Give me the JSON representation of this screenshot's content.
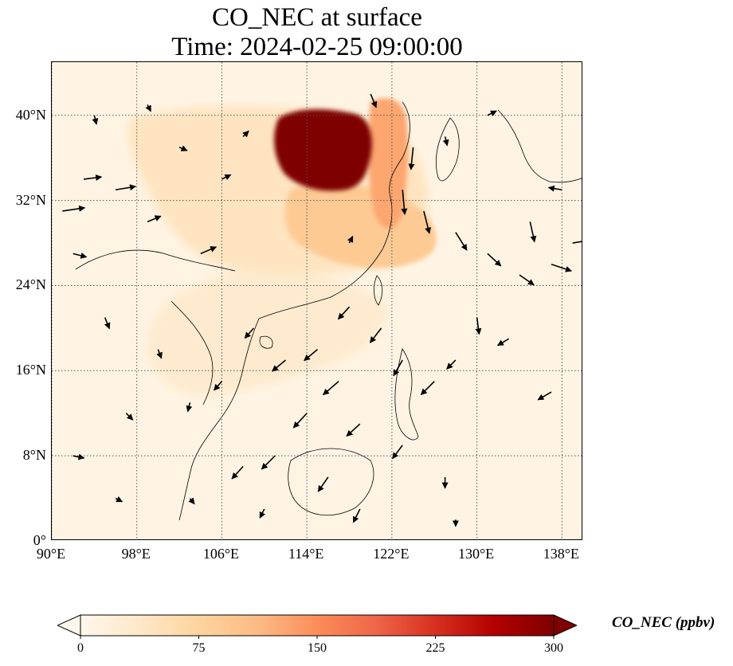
{
  "title": {
    "line1": "CO_NEC at surface",
    "line2": "Time: 2024-02-25 09:00:00"
  },
  "map": {
    "variable": "CO_NEC",
    "level": "surface",
    "lon_range": [
      90,
      140
    ],
    "lat_range": [
      0,
      45
    ],
    "lat_ticks": [
      {
        "value": 0,
        "label": "0°"
      },
      {
        "value": 8,
        "label": "8°N"
      },
      {
        "value": 16,
        "label": "16°N"
      },
      {
        "value": 24,
        "label": "24°N"
      },
      {
        "value": 32,
        "label": "32°N"
      },
      {
        "value": 40,
        "label": "40°N"
      }
    ],
    "lon_ticks": [
      {
        "value": 90,
        "label": "90°E"
      },
      {
        "value": 98,
        "label": "98°E"
      },
      {
        "value": 106,
        "label": "106°E"
      },
      {
        "value": 114,
        "label": "114°E"
      },
      {
        "value": 122,
        "label": "122°E"
      },
      {
        "value": 130,
        "label": "130°E"
      },
      {
        "value": 138,
        "label": "138°E"
      }
    ],
    "gridlines": true,
    "colormap": "OrRd",
    "regions": [
      {
        "name": "background",
        "value": 8
      },
      {
        "name": "south-china-haze",
        "value": 30
      },
      {
        "name": "inland-plume",
        "value": 45
      },
      {
        "name": "yangtze-band",
        "value": 90
      },
      {
        "name": "east-coast-band",
        "value": 130
      },
      {
        "name": "north-china-plain",
        "value": 300
      }
    ],
    "wind_vectors": [
      {
        "lon": 91,
        "lat": 31,
        "u": 2,
        "v": 0.3
      },
      {
        "lon": 93,
        "lat": 34,
        "u": 1.6,
        "v": 0.2
      },
      {
        "lon": 96,
        "lat": 33,
        "u": 1.8,
        "v": 0.3
      },
      {
        "lon": 99,
        "lat": 30,
        "u": 1.2,
        "v": 0.5
      },
      {
        "lon": 104,
        "lat": 27,
        "u": 1.4,
        "v": 0.6
      },
      {
        "lon": 92,
        "lat": 27,
        "u": 1.2,
        "v": -0.3
      },
      {
        "lon": 95,
        "lat": 21,
        "u": 0.4,
        "v": -1
      },
      {
        "lon": 97,
        "lat": 12,
        "u": 0.6,
        "v": -0.6
      },
      {
        "lon": 92,
        "lat": 8,
        "u": 1,
        "v": -0.2
      },
      {
        "lon": 109,
        "lat": 20,
        "u": -0.8,
        "v": -0.9
      },
      {
        "lon": 112,
        "lat": 17,
        "u": -1.2,
        "v": -1
      },
      {
        "lon": 115,
        "lat": 18,
        "u": -1.2,
        "v": -1
      },
      {
        "lon": 117,
        "lat": 15,
        "u": -1.4,
        "v": -1.2
      },
      {
        "lon": 114,
        "lat": 12,
        "u": -1.2,
        "v": -1.3
      },
      {
        "lon": 111,
        "lat": 8,
        "u": -1.2,
        "v": -1.2
      },
      {
        "lon": 108,
        "lat": 7,
        "u": -1,
        "v": -1.1
      },
      {
        "lon": 118,
        "lat": 22,
        "u": -1,
        "v": -1.1
      },
      {
        "lon": 121,
        "lat": 20,
        "u": -1,
        "v": -1.3
      },
      {
        "lon": 123,
        "lat": 17,
        "u": -0.8,
        "v": -1.4
      },
      {
        "lon": 126,
        "lat": 15,
        "u": -1.2,
        "v": -1.2
      },
      {
        "lon": 119,
        "lat": 11,
        "u": -1.2,
        "v": -1.1
      },
      {
        "lon": 123,
        "lat": 9,
        "u": -0.9,
        "v": -1.2
      },
      {
        "lon": 116,
        "lat": 6,
        "u": -0.9,
        "v": -1.3
      },
      {
        "lon": 119,
        "lat": 3,
        "u": -0.6,
        "v": -1.2
      },
      {
        "lon": 124,
        "lat": 37,
        "u": -0.2,
        "v": -2
      },
      {
        "lon": 123,
        "lat": 33,
        "u": 0.2,
        "v": -2.2
      },
      {
        "lon": 125,
        "lat": 31,
        "u": 0.5,
        "v": -2
      },
      {
        "lon": 128,
        "lat": 29,
        "u": 1,
        "v": -1.6
      },
      {
        "lon": 131,
        "lat": 27,
        "u": 1.2,
        "v": -1.1
      },
      {
        "lon": 134,
        "lat": 25,
        "u": 1.3,
        "v": -0.9
      },
      {
        "lon": 135,
        "lat": 30,
        "u": 0.4,
        "v": -1.8
      },
      {
        "lon": 138,
        "lat": 33,
        "u": -1.2,
        "v": 0.2
      },
      {
        "lon": 137,
        "lat": 26,
        "u": 1.8,
        "v": -0.6
      },
      {
        "lon": 139,
        "lat": 28,
        "u": 1.8,
        "v": 0.3
      },
      {
        "lon": 130,
        "lat": 21,
        "u": 0.2,
        "v": -1.5
      },
      {
        "lon": 128,
        "lat": 17,
        "u": -0.8,
        "v": -0.8
      },
      {
        "lon": 133,
        "lat": 19,
        "u": -1,
        "v": -0.6
      },
      {
        "lon": 137,
        "lat": 14,
        "u": -1.2,
        "v": -0.7
      },
      {
        "lon": 127,
        "lat": 6,
        "u": 0,
        "v": -1
      },
      {
        "lon": 106,
        "lat": 34,
        "u": 0.8,
        "v": 0.4
      },
      {
        "lon": 108,
        "lat": 38,
        "u": 0.5,
        "v": 0.5
      },
      {
        "lon": 102,
        "lat": 37,
        "u": 0.7,
        "v": -0.3
      },
      {
        "lon": 99,
        "lat": 41,
        "u": 0.3,
        "v": -0.6
      },
      {
        "lon": 94,
        "lat": 40,
        "u": 0.2,
        "v": -0.8
      },
      {
        "lon": 118,
        "lat": 28,
        "u": 0.3,
        "v": 0.6
      },
      {
        "lon": 120,
        "lat": 42,
        "u": 0.5,
        "v": -1.2
      },
      {
        "lon": 127,
        "lat": 38,
        "u": 0.2,
        "v": -0.8
      },
      {
        "lon": 131,
        "lat": 40,
        "u": 0.8,
        "v": 0.4
      },
      {
        "lon": 100,
        "lat": 18,
        "u": 0.3,
        "v": -0.8
      },
      {
        "lon": 103,
        "lat": 13,
        "u": -0.2,
        "v": -0.8
      },
      {
        "lon": 106,
        "lat": 15,
        "u": -0.7,
        "v": -0.8
      },
      {
        "lon": 96,
        "lat": 4,
        "u": 0.6,
        "v": -0.3
      },
      {
        "lon": 103,
        "lat": 4,
        "u": 0.4,
        "v": -0.5
      },
      {
        "lon": 110,
        "lat": 3,
        "u": -0.4,
        "v": -0.8
      },
      {
        "lon": 128,
        "lat": 2,
        "u": 0,
        "v": -0.6
      }
    ]
  },
  "colorbar": {
    "label": "CO_NEC (ppbv)",
    "min": 0,
    "max": 300,
    "ticks": [
      {
        "value": 0,
        "label": "0"
      },
      {
        "value": 75,
        "label": "75"
      },
      {
        "value": 150,
        "label": "150"
      },
      {
        "value": 225,
        "label": "225"
      },
      {
        "value": 300,
        "label": "300"
      }
    ],
    "extend": "both"
  }
}
